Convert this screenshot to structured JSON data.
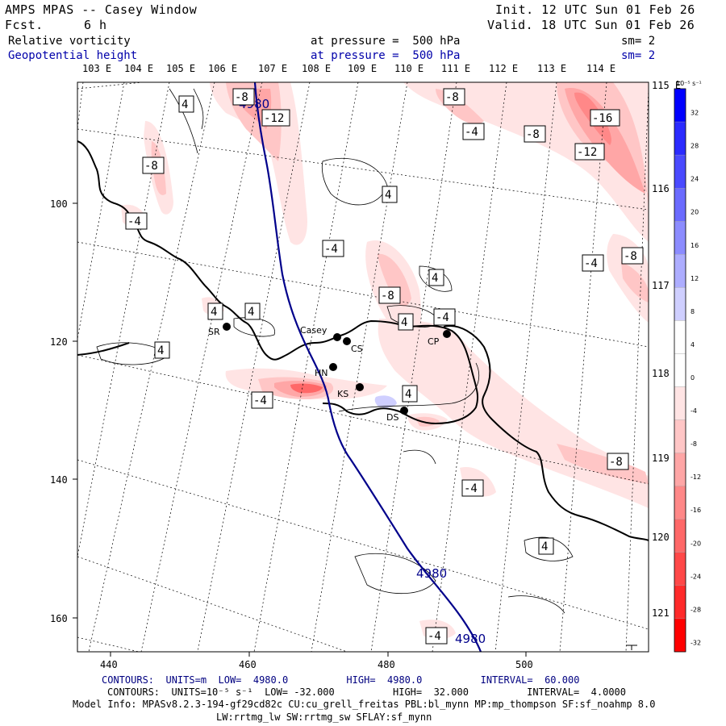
{
  "header": {
    "title": "AMPS MPAS -- Casey Window",
    "forecast_label": "Fcst.",
    "forecast_value": "6 h",
    "init": "Init. 12 UTC Sun 01 Feb 26",
    "valid": "Valid. 18 UTC Sun 01 Feb 26",
    "field1_name": "Relative vorticity",
    "field1_pressure": "at pressure =  500 hPa",
    "field1_sm": "sm= 2",
    "field2_name": "Geopotential height",
    "field2_pressure": "at pressure =  500 hPa",
    "field2_sm": "sm= 2"
  },
  "axes": {
    "lon_top": [
      "103 E",
      "104 E",
      "105 E",
      "106 E",
      "107 E",
      "108 E",
      "109 E",
      "110 E",
      "111 E",
      "112 E",
      "113 E",
      "114 E"
    ],
    "lat_right": [
      "115 E",
      "116 E",
      "117 E",
      "118 E",
      "119 E",
      "120 E",
      "121 E"
    ],
    "y_ticks": [
      "100",
      "120",
      "140",
      "160"
    ],
    "x_ticks": [
      "440",
      "460",
      "480",
      "500"
    ]
  },
  "stations": [
    {
      "id": "SR",
      "label": "SR"
    },
    {
      "id": "casey",
      "label": "Casey"
    },
    {
      "id": "CS",
      "label": "CS"
    },
    {
      "id": "CP",
      "label": "CP"
    },
    {
      "id": "HN",
      "label": "HN"
    },
    {
      "id": "KS",
      "label": "KS"
    },
    {
      "id": "DS",
      "label": "DS"
    }
  ],
  "height_contour_label": "4980",
  "vorticity_labels": [
    "-4",
    "-8",
    "-12",
    "-16",
    "4"
  ],
  "colorbar": {
    "unit": "10⁻⁵ s⁻¹",
    "values": [
      "32",
      "28",
      "24",
      "20",
      "16",
      "12",
      "8",
      "4",
      "0",
      "-4",
      "-8",
      "-12",
      "-16",
      "-20",
      "-24",
      "-28",
      "-32"
    ],
    "colors": [
      "#0000ff",
      "#2b2bff",
      "#4a4aff",
      "#6b6bff",
      "#8c8cff",
      "#adadff",
      "#cfcfff",
      "#ffffff",
      "#ffffff",
      "#ffe4e4",
      "#ffc6c6",
      "#ffa6a6",
      "#ff8888",
      "#ff6868",
      "#ff4848",
      "#ff2a2a",
      "#ff0000"
    ]
  },
  "footer": {
    "contours1": "CONTOURS:  UNITS=m  LOW=  4980.0          HIGH=  4980.0          INTERVAL=  60.000",
    "contours2": "CONTOURS:  UNITS=10⁻⁵ s⁻¹  LOW= -32.000          HIGH=  32.000          INTERVAL=  4.0000",
    "model_info": "Model Info: MPASv8.2.3-194-gf29cd82c CU:cu_grell_freitas PBL:bl_mynn MP:mp_thompson SF:sf_noahmp 8.0",
    "model_info2": "LW:rrtmg_lw SW:rrtmg_sw SFLAY:sf_mynn"
  }
}
